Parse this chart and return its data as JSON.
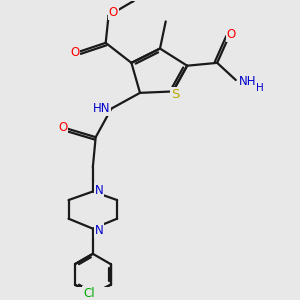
{
  "bg_color": "#e8e8e8",
  "bond_color": "#1a1a1a",
  "bond_width": 1.6,
  "atom_colors": {
    "O": "#ff0000",
    "N": "#0000cc",
    "S": "#bbaa00",
    "Cl": "#00aa00",
    "C": "#1a1a1a",
    "H": "#1a1a1a"
  },
  "font_size": 8.5,
  "fig_size": [
    3.0,
    3.0
  ],
  "dpi": 100
}
